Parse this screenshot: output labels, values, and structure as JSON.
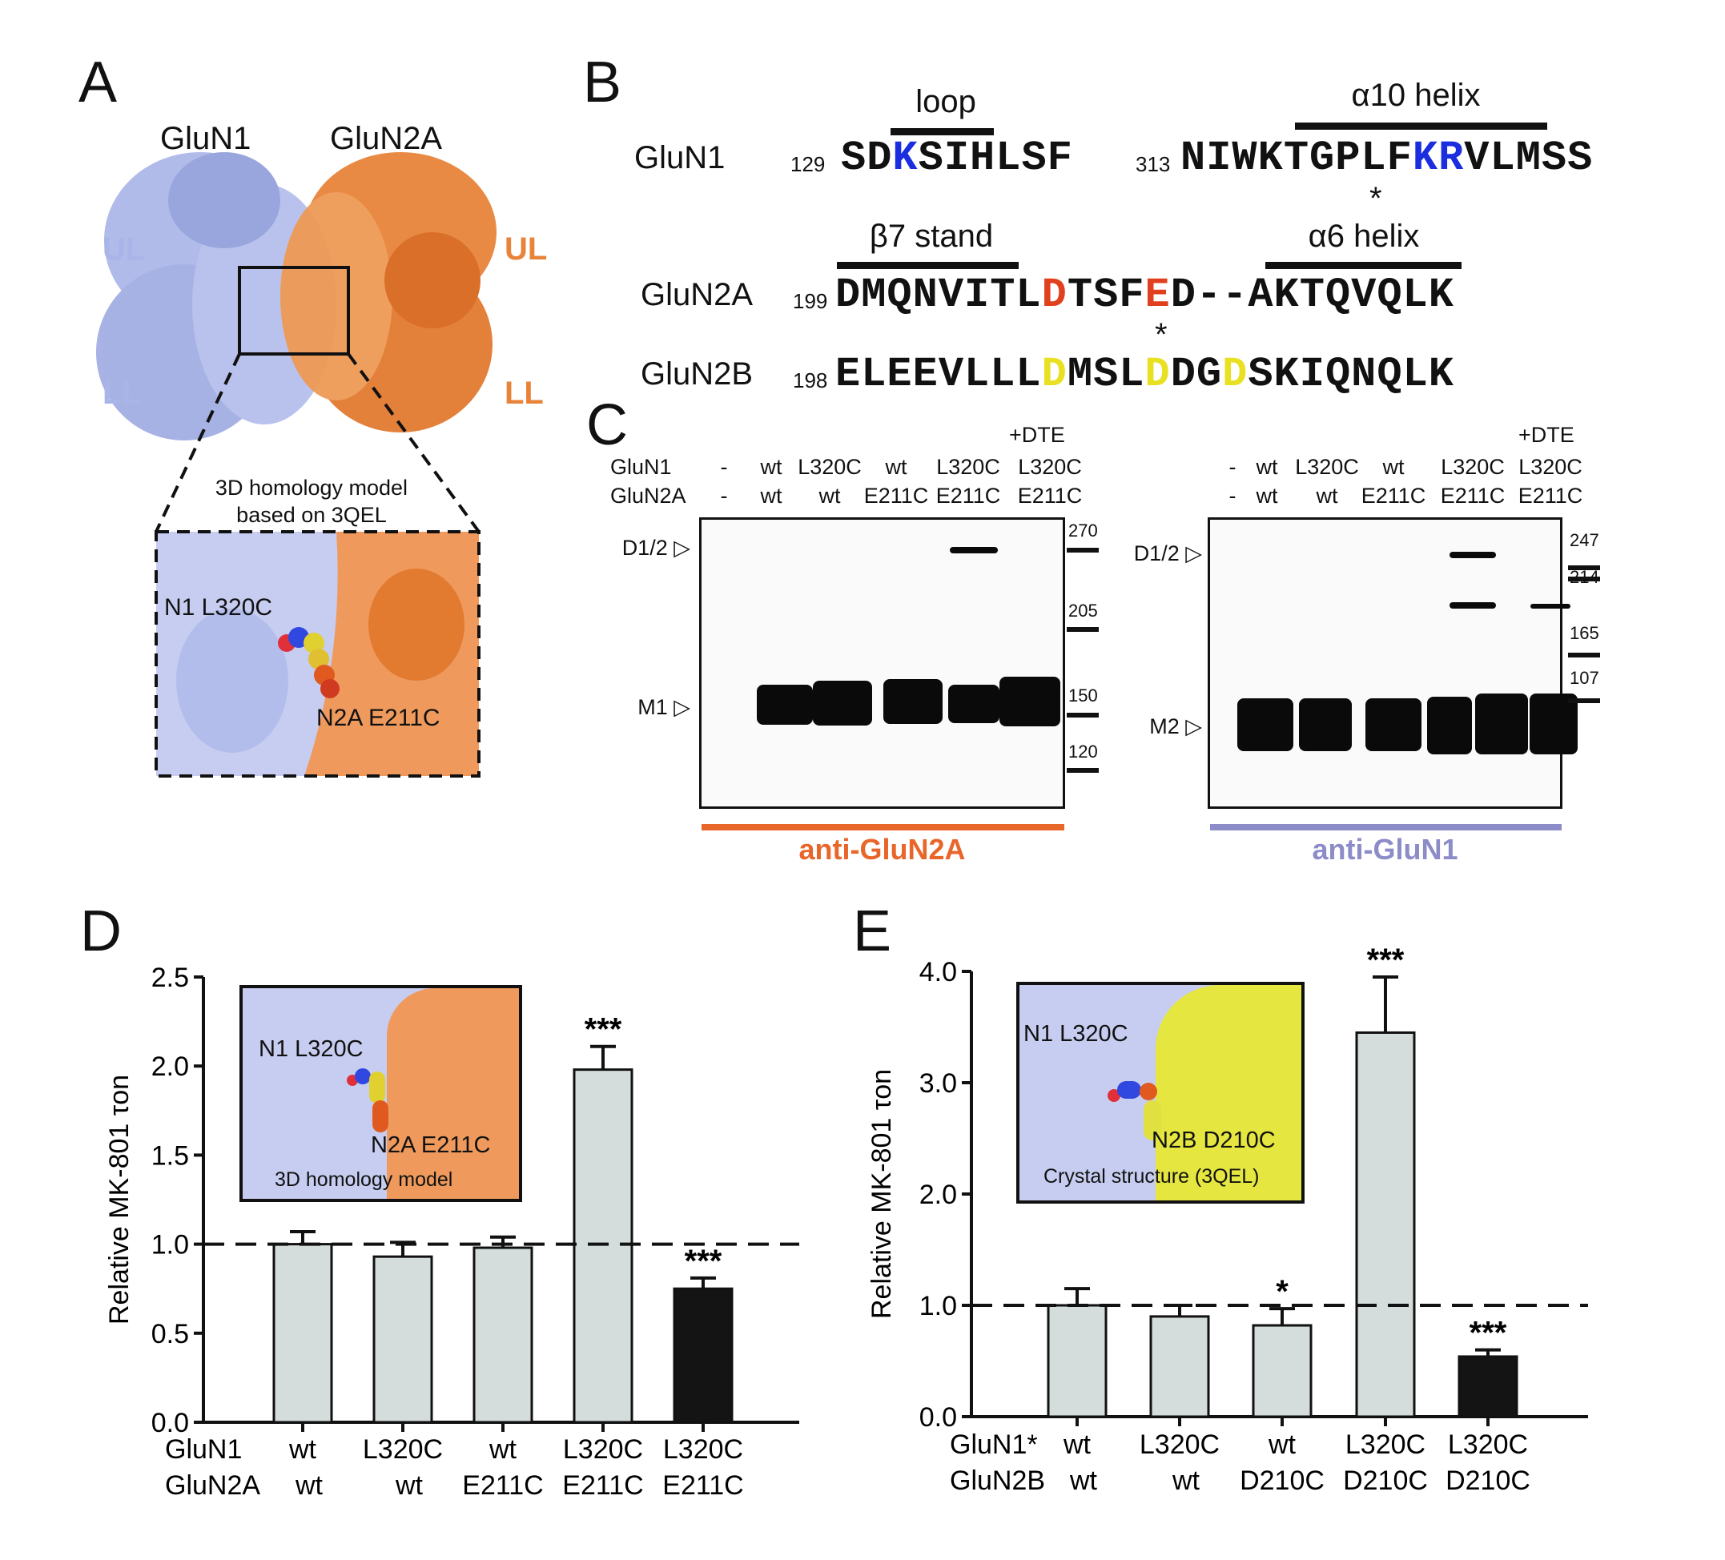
{
  "panels": {
    "a": "A",
    "b": "B",
    "c": "C",
    "d": "D",
    "e": "E"
  },
  "panel_a": {
    "glun1": "GluN1",
    "glun2a": "GluN2A",
    "ul": "UL",
    "ll": "LL",
    "caption1": "3D homology model",
    "caption2": "based on 3QEL",
    "res1": "N1 L320C",
    "res2": "N2A E211C",
    "colors": {
      "glun1": "#a9b4e8",
      "glun2a": "#e8843a"
    }
  },
  "panel_b": {
    "annotations": {
      "loop": "loop",
      "a10": "α10 helix",
      "b7": "β7 stand",
      "a6": "α6 helix",
      "star": "*"
    },
    "rows": [
      {
        "label": "GluN1",
        "parts": [
          {
            "num": "129",
            "segs": [
              [
                "SD",
                "#111"
              ],
              [
                "K",
                "#1a2ee0"
              ],
              [
                "SIHLSF",
                "#111"
              ]
            ]
          },
          {
            "num": "313",
            "segs": [
              [
                "NIWKTGPLF",
                "#111"
              ],
              [
                "KR",
                "#1a2ee0"
              ],
              [
                "VLMSS",
                "#111"
              ]
            ]
          }
        ]
      },
      {
        "label": "GluN2A",
        "parts": [
          {
            "num": "199",
            "segs": [
              [
                "DMQNVITL",
                "#111"
              ],
              [
                "D",
                "#e0401e"
              ],
              [
                "TSF",
                "#111"
              ],
              [
                "E",
                "#e0401e"
              ],
              [
                "D--AKTQVQLK",
                "#111"
              ]
            ]
          }
        ]
      },
      {
        "label": "GluN2B",
        "parts": [
          {
            "num": "198",
            "segs": [
              [
                "ELEEVLLL",
                "#111"
              ],
              [
                "D",
                "#e8e020"
              ],
              [
                "MSL",
                "#111"
              ],
              [
                "D",
                "#e8e020"
              ],
              [
                "DG",
                "#111"
              ],
              [
                "D",
                "#e8e020"
              ],
              [
                "SKIQNQLK",
                "#111"
              ]
            ]
          }
        ]
      }
    ]
  },
  "panel_c": {
    "dte": "+DTE",
    "row1": "GluN1",
    "row2": "GluN2A",
    "blot1": {
      "glun1": [
        "-",
        "wt",
        "L320C",
        "wt",
        "L320C",
        "L320C"
      ],
      "glun2a": [
        "-",
        "wt",
        "wt",
        "E211C",
        "E211C",
        "E211C"
      ],
      "markers": [
        "D1/2 ▷",
        "M1 ▷"
      ],
      "mw": [
        "270",
        "205",
        "150",
        "120"
      ],
      "antibody": "anti-GluN2A",
      "color": "#e8662a"
    },
    "blot2": {
      "glun1": [
        "-",
        "wt",
        "L320C",
        "wt",
        "L320C",
        "L320C"
      ],
      "glun2a": [
        "-",
        "wt",
        "wt",
        "E211C",
        "E211C",
        "E211C"
      ],
      "markers": [
        "D1/2 ▷",
        "M2 ▷"
      ],
      "mw": [
        "247",
        "214",
        "165",
        "107"
      ],
      "antibody": "anti-GluN1",
      "color": "#8c8cc8"
    }
  },
  "panel_d_inset": {
    "res1": "N1 L320C",
    "res2": "N2A E211C",
    "caption": "3D homology model"
  },
  "panel_e_inset": {
    "res1": "N1 L320C",
    "res2": "N2B D210C",
    "caption": "Crystal structure (3QEL)"
  },
  "chart_data": [
    {
      "type": "bar",
      "ylabel": "Relative MK-801 τon",
      "ylim": [
        0,
        2.5
      ],
      "yticks": [
        "0.0",
        "0.5",
        "1.0",
        "1.5",
        "2.0",
        "2.5"
      ],
      "reference_line": 1.0,
      "row_labels": [
        "GluN1",
        "GluN2A"
      ],
      "categories": [
        [
          "wt",
          "wt"
        ],
        [
          "L320C",
          "wt"
        ],
        [
          "wt",
          "E211C"
        ],
        [
          "L320C",
          "E211C"
        ],
        [
          "L320C",
          "E211C"
        ]
      ],
      "values": [
        1.0,
        0.93,
        0.98,
        1.98,
        0.75
      ],
      "errors": [
        0.07,
        0.08,
        0.06,
        0.13,
        0.06
      ],
      "significance": [
        "",
        "",
        "",
        "***",
        "***"
      ],
      "bar_colors": [
        "#d4dcdc",
        "#d4dcdc",
        "#d4dcdc",
        "#d4dcdc",
        "#141414"
      ]
    },
    {
      "type": "bar",
      "ylabel": "Relative MK-801 τon",
      "ylim": [
        0,
        4.0
      ],
      "yticks": [
        "0.0",
        "1.0",
        "2.0",
        "3.0",
        "4.0"
      ],
      "reference_line": 1.0,
      "row_labels": [
        "GluN1*",
        "GluN2B"
      ],
      "categories": [
        [
          "wt",
          "wt"
        ],
        [
          "L320C",
          "wt"
        ],
        [
          "wt",
          "D210C"
        ],
        [
          "L320C",
          "D210C"
        ],
        [
          "L320C",
          "D210C"
        ]
      ],
      "values": [
        1.0,
        0.9,
        0.82,
        3.45,
        0.54
      ],
      "errors": [
        0.15,
        0.1,
        0.15,
        0.5,
        0.06
      ],
      "significance": [
        "",
        "",
        "*",
        "***",
        "***"
      ],
      "bar_colors": [
        "#d4dcdc",
        "#d4dcdc",
        "#d4dcdc",
        "#d4dcdc",
        "#141414"
      ]
    }
  ]
}
